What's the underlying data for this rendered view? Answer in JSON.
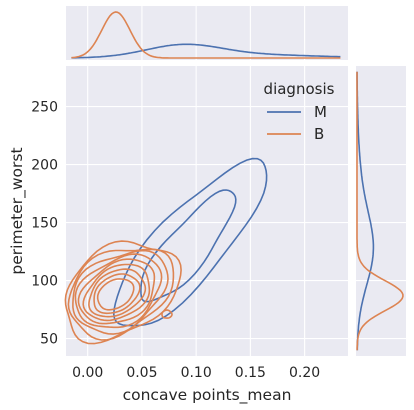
{
  "chart_data": {
    "type": "kde-jointplot",
    "xlabel": "concave points_mean",
    "ylabel": "perimeter_worst",
    "xlim": [
      -0.02,
      0.24
    ],
    "ylim": [
      35,
      285
    ],
    "xticks": [
      0.0,
      0.05,
      0.1,
      0.15,
      0.2
    ],
    "xtick_labels": [
      "0.00",
      "0.05",
      "0.10",
      "0.15",
      "0.20"
    ],
    "yticks": [
      50,
      100,
      150,
      200,
      250
    ],
    "ytick_labels": [
      "50",
      "100",
      "150",
      "200",
      "250"
    ],
    "grid": true,
    "legend": {
      "title": "diagnosis",
      "placement": "top-right",
      "entries": [
        {
          "name": "M",
          "color": "#4c72b0"
        },
        {
          "name": "B",
          "color": "#dd8452"
        }
      ]
    },
    "series": [
      {
        "name": "M",
        "color": "#4c72b0",
        "joint_center": [
          0.09,
          125
        ],
        "contour_levels": [
          {
            "rx": 0.045,
            "ry_over": 35,
            "angle_deg": 42,
            "level": "outer"
          },
          {
            "rx": 0.03,
            "ry_over": 22,
            "angle_deg": 42,
            "level": "inner"
          }
        ],
        "marginal_x": {
          "peak_at": 0.088,
          "max_density": 8,
          "spread": 0.035
        },
        "marginal_y": {
          "peak_at": 125,
          "max_density": 0.011,
          "spread": 30
        }
      },
      {
        "name": "B",
        "color": "#dd8452",
        "joint_center": [
          0.025,
          88
        ],
        "contour_levels": 9,
        "marginal_x": {
          "peak_at": 0.026,
          "max_density": 30,
          "spread": 0.013
        },
        "marginal_y": {
          "peak_at": 87,
          "max_density": 0.037,
          "spread": 13
        }
      }
    ]
  },
  "colors": {
    "panel_background": "#eaeaf2",
    "grid": "#ffffff",
    "text": "#262626"
  }
}
